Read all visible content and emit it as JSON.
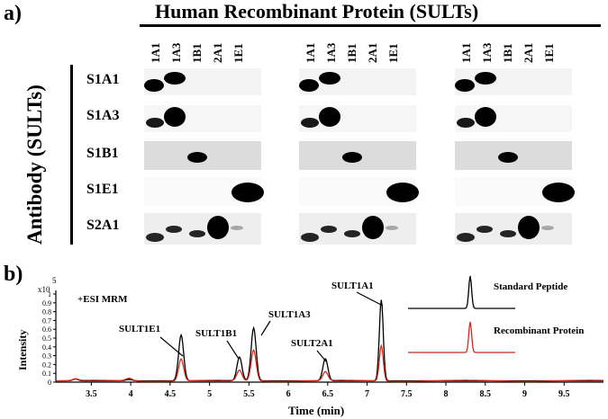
{
  "figure": {
    "panel_a_label": "a)",
    "panel_b_label": "b)",
    "title": "Human Recombinant Protein (SULTs)",
    "ylabel_a": "Antibody (SULTs)",
    "column_labels": [
      "1A1",
      "1A3",
      "1B1",
      "2A1",
      "1E1"
    ],
    "row_labels": [
      "S1A1",
      "S1A3",
      "S1B1",
      "S1E1",
      "S2A1"
    ]
  },
  "chart_data": {
    "type": "line",
    "xlabel": "Time (min)",
    "ylabel": "Intensity",
    "y_multiplier_base": "x10",
    "y_multiplier_exp": "5",
    "mode_label": "+ESI MRM",
    "xlim": [
      3.05,
      10.0
    ],
    "ylim": [
      0,
      1.0
    ],
    "x_ticks": [
      "3.5",
      "4",
      "4.5",
      "5",
      "5.5",
      "6",
      "6.5",
      "7",
      "7.5",
      "8",
      "8.5",
      "9",
      "9.5"
    ],
    "y_ticks": [
      "0",
      "0.1",
      "0.2",
      "0.3",
      "0.4",
      "0.5",
      "0.6",
      "0.7",
      "0.8",
      "0.9",
      "1"
    ],
    "series": [
      {
        "name": "Standard Peptide",
        "color": "#000000",
        "peaks": [
          {
            "x": 4.64,
            "height": 0.52
          },
          {
            "x": 5.38,
            "height": 0.27
          },
          {
            "x": 5.56,
            "height": 0.6
          },
          {
            "x": 6.47,
            "height": 0.25
          },
          {
            "x": 7.18,
            "height": 0.92
          }
        ]
      },
      {
        "name": "Recombinant Protein",
        "color": "#cc2b1d",
        "peaks": [
          {
            "x": 4.64,
            "height": 0.25
          },
          {
            "x": 5.38,
            "height": 0.12
          },
          {
            "x": 5.56,
            "height": 0.35
          },
          {
            "x": 6.47,
            "height": 0.1
          },
          {
            "x": 7.18,
            "height": 0.4
          }
        ]
      }
    ],
    "annotations": [
      "SULT1E1",
      "SULT1B1",
      "SULT1A3",
      "SULT2A1",
      "SULT1A1"
    ]
  }
}
